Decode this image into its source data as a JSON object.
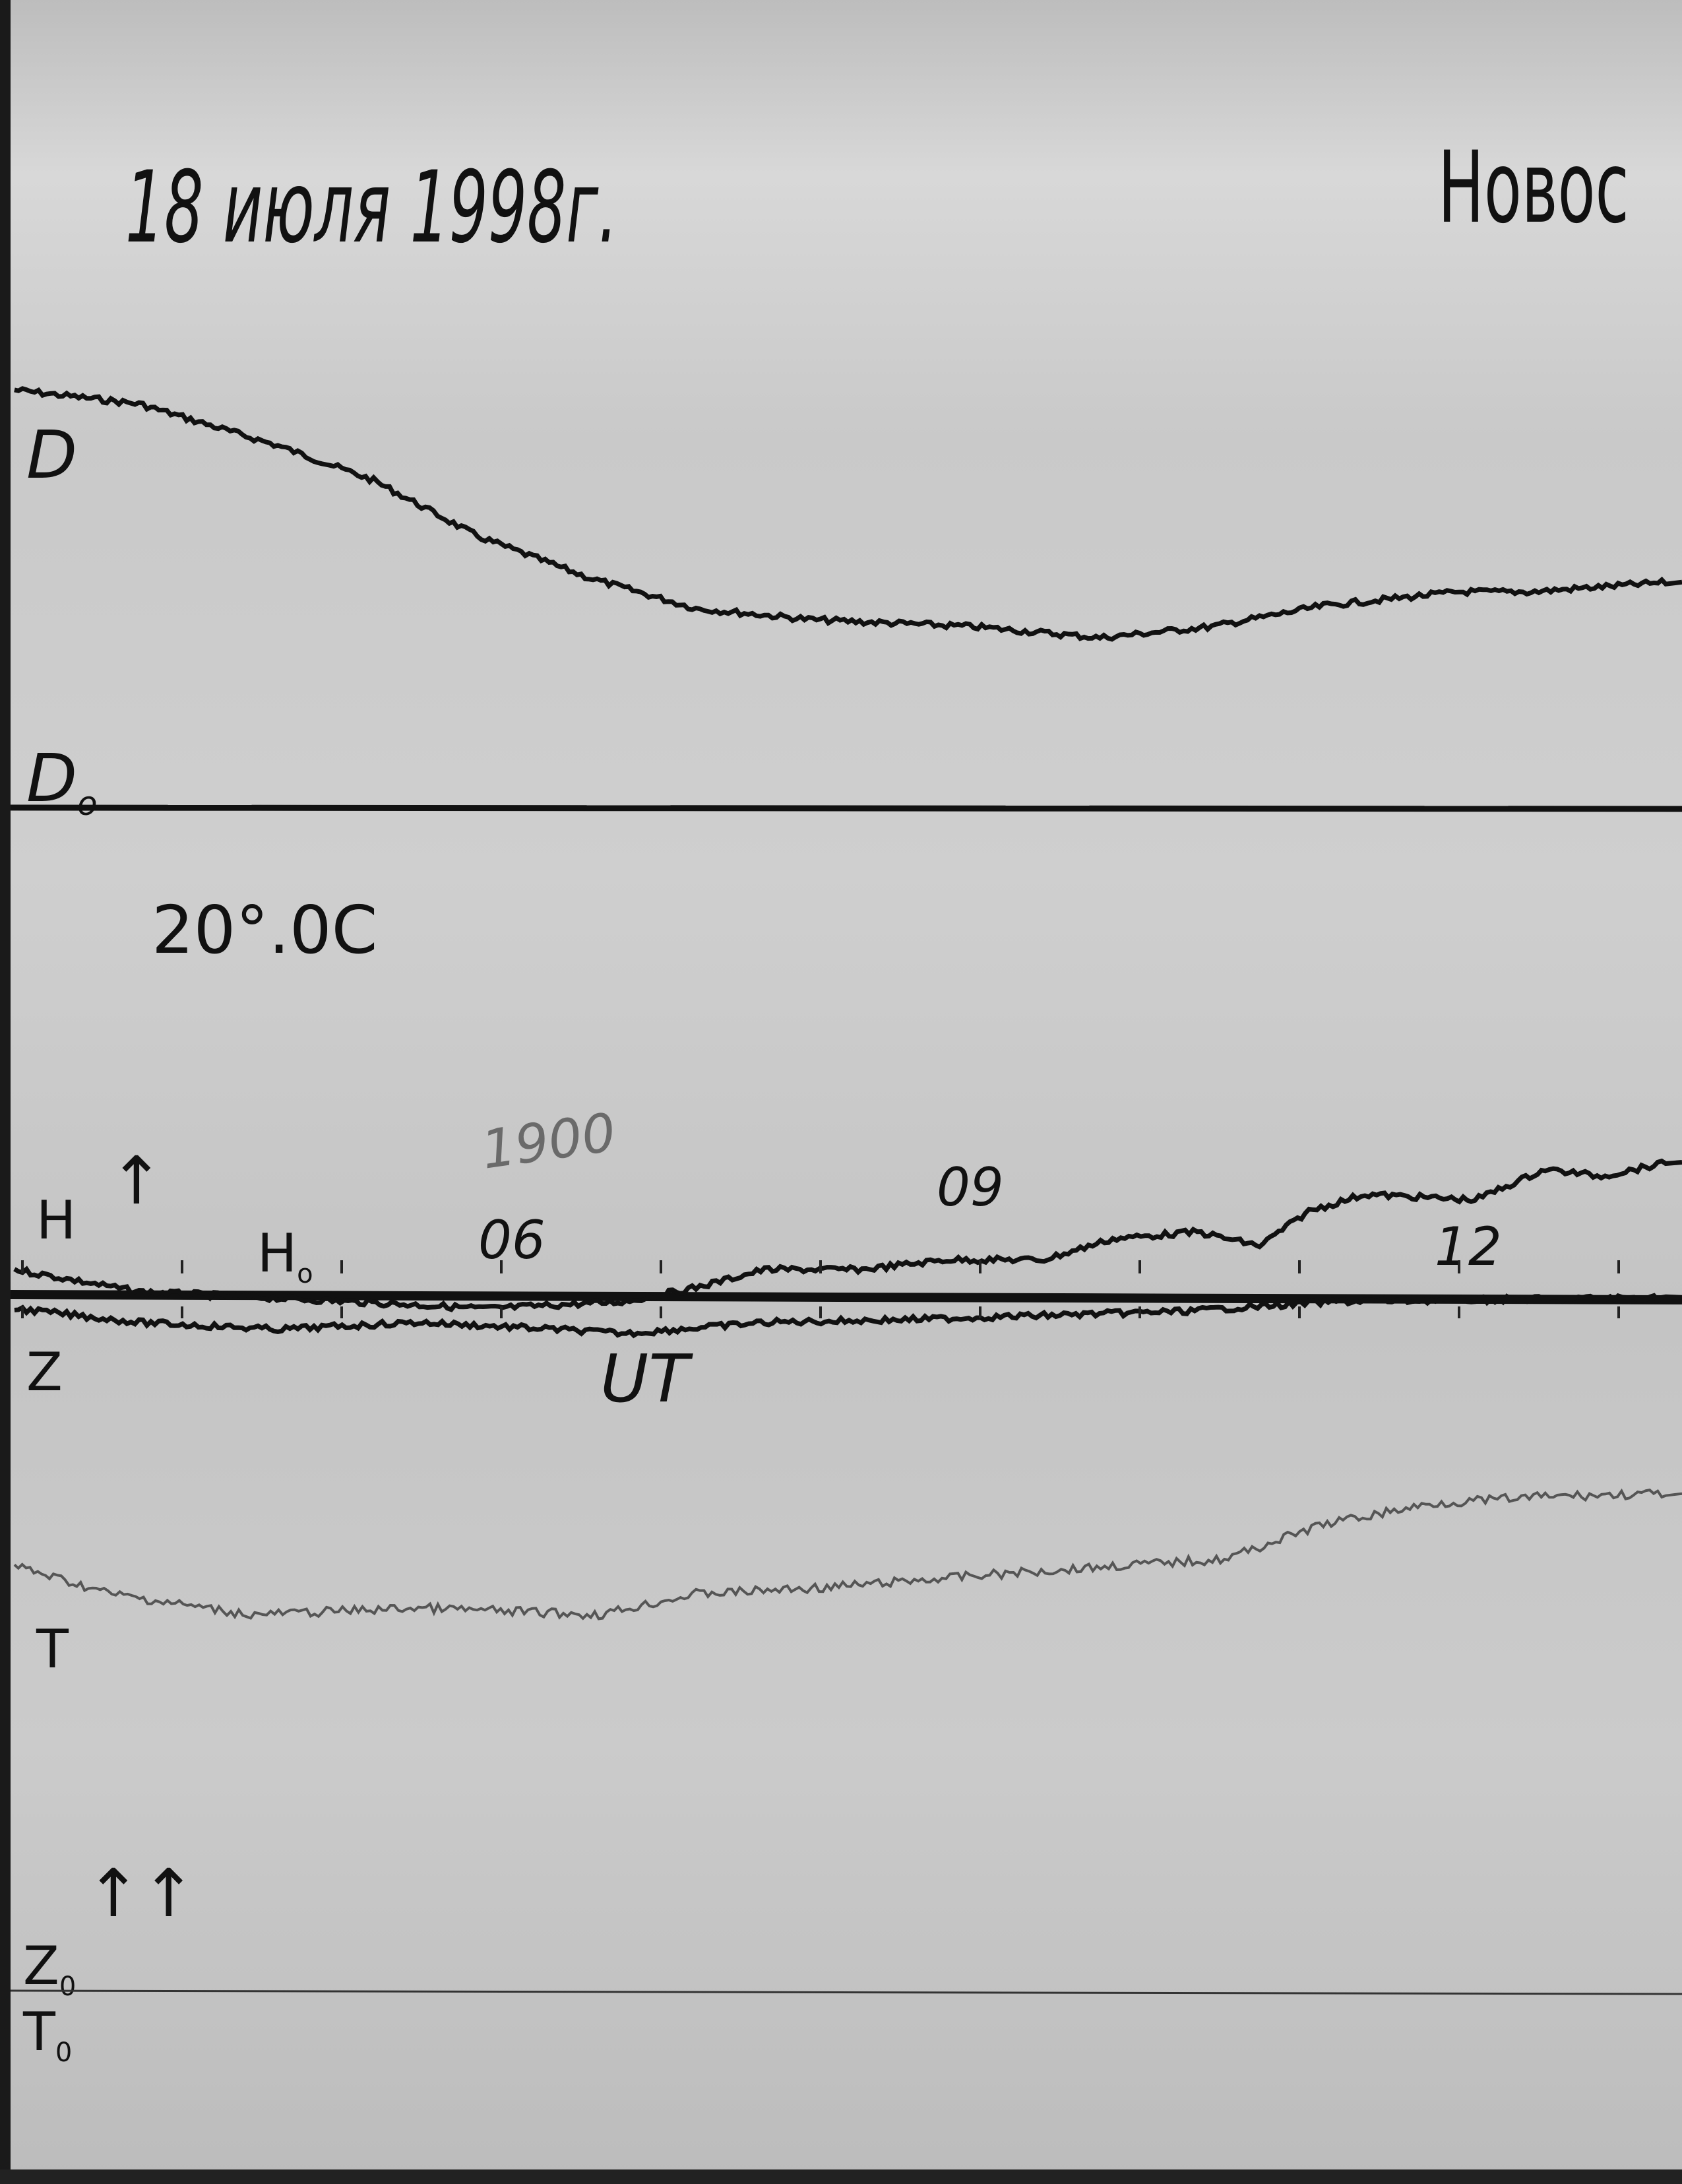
{
  "header": {
    "date": "18 июля 1998г.",
    "station": "Новос"
  },
  "labels": {
    "D": "D",
    "D0": "D",
    "D0_sub": "o",
    "temperature": "20°.0C",
    "pencil_note": "1900",
    "H": "H",
    "H0": "H",
    "H0_sub": "o",
    "Z": "Z",
    "UT": "UT",
    "T": "T",
    "arrow_single": "↑",
    "arrow_double": "↑↑",
    "Z0": "Z",
    "Z0_sub": "0",
    "T0": "T",
    "T0_sub": "0"
  },
  "colors": {
    "trace": "#111111",
    "paper": "#c8c8c8",
    "pencil": "#6a6a6a",
    "T_trace": "#555555"
  },
  "chart_data": {
    "type": "line",
    "title": "18 июля 1998г.",
    "xlabel": "UT",
    "x_tick_labels": [
      "06",
      "09",
      "12"
    ],
    "x_ticks": [
      6,
      9,
      12
    ],
    "xlim": [
      2.86,
      13.4
    ],
    "grid": false,
    "legend": "none",
    "series": [
      {
        "name": "D",
        "baseline": "D0",
        "x": [
          2.95,
          3.73,
          4.6,
          5.2,
          5.85,
          6.55,
          7.22,
          7.95,
          8.96,
          9.75,
          10.45,
          11.15,
          12.0,
          12.45,
          13.32
        ],
        "y": [
          300,
          290,
          260,
          235,
          195,
          165,
          143,
          135,
          130,
          122,
          130,
          145,
          155,
          155,
          162
        ]
      },
      {
        "name": "H",
        "baseline": "H0",
        "x": [
          2.95,
          3.73,
          5.04,
          5.91,
          6.78,
          7.22,
          7.65,
          8.26,
          8.79,
          9.4,
          9.83,
          10.36,
          10.75,
          11.06,
          11.41,
          12.1,
          12.54,
          12.89,
          13.32
        ],
        "y": [
          18,
          2,
          -5,
          -10,
          -5,
          5,
          18,
          18,
          25,
          25,
          40,
          45,
          35,
          60,
          72,
          68,
          90,
          85,
          95
        ]
      },
      {
        "name": "Z",
        "baseline": "H0",
        "x": [
          2.95,
          3.73,
          4.6,
          5.48,
          6.35,
          6.78,
          7.65,
          8.53,
          9.4,
          10.27,
          11.23,
          13.32
        ],
        "y": [
          -10,
          -20,
          -25,
          -20,
          -25,
          -28,
          -20,
          -18,
          -15,
          -12,
          -5,
          -2
        ]
      },
      {
        "name": "T",
        "baseline": "T0",
        "x": [
          2.95,
          3.56,
          4.43,
          5.48,
          6.61,
          7.22,
          8.09,
          8.96,
          9.83,
          10.53,
          11.15,
          11.84,
          12.54,
          13.32
        ],
        "y": [
          305,
          285,
          270,
          275,
          270,
          285,
          290,
          298,
          305,
          310,
          335,
          350,
          355,
          357
        ]
      }
    ]
  }
}
